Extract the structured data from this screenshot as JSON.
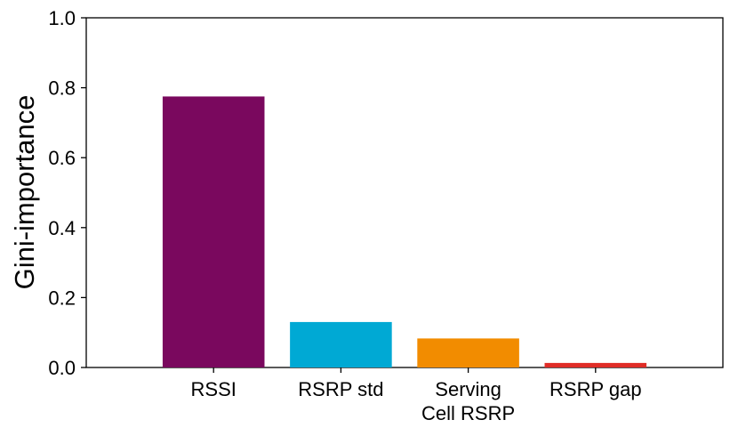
{
  "chart_data": {
    "type": "bar",
    "title": "",
    "xlabel": "",
    "ylabel": "Gini-importance",
    "categories": [
      [
        "RSSI"
      ],
      [
        "RSRP std"
      ],
      [
        "Serving",
        "Cell RSRP"
      ],
      [
        "RSRP gap"
      ]
    ],
    "values": [
      0.775,
      0.13,
      0.083,
      0.013
    ],
    "colors": [
      "#7a085e",
      "#00a9d4",
      "#f28c00",
      "#e02d27"
    ],
    "ylim": [
      0,
      1.0
    ],
    "yticks": [
      "0.0",
      "0.2",
      "0.4",
      "0.6",
      "0.8",
      "1.0"
    ],
    "grid": false,
    "legend": "none"
  }
}
